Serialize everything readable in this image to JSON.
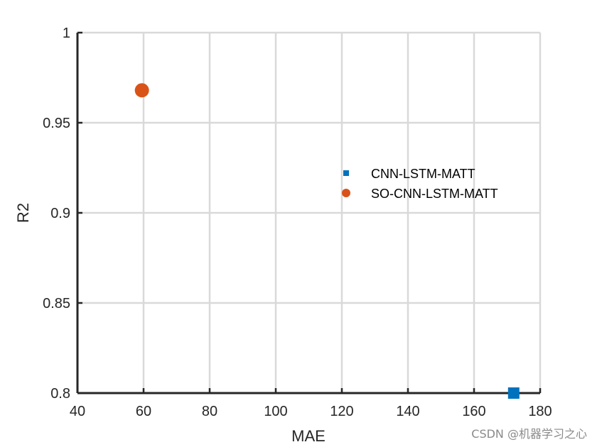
{
  "chart_data": {
    "type": "scatter",
    "title": "",
    "xlabel": "MAE",
    "ylabel": "R2",
    "xlim": [
      40,
      180
    ],
    "ylim": [
      0.8,
      1
    ],
    "xticks": [
      40,
      60,
      80,
      100,
      120,
      140,
      160,
      180
    ],
    "yticks": [
      0.8,
      0.85,
      0.9,
      0.95,
      1
    ],
    "xtick_labels": [
      "40",
      "60",
      "80",
      "100",
      "120",
      "140",
      "160",
      "180"
    ],
    "ytick_labels": [
      "0.8",
      "0.85",
      "0.9",
      "0.95",
      "1"
    ],
    "grid": true,
    "legend_position": "right",
    "series": [
      {
        "name": "CNN-LSTM-MATT",
        "marker": "square",
        "color": "#0072BD",
        "points": [
          {
            "x": 172,
            "y": 0.8
          }
        ]
      },
      {
        "name": "SO-CNN-LSTM-MATT",
        "marker": "circle",
        "color": "#D95319",
        "points": [
          {
            "x": 59.5,
            "y": 0.968
          }
        ]
      }
    ]
  },
  "watermark": "CSDN @机器学习之心"
}
